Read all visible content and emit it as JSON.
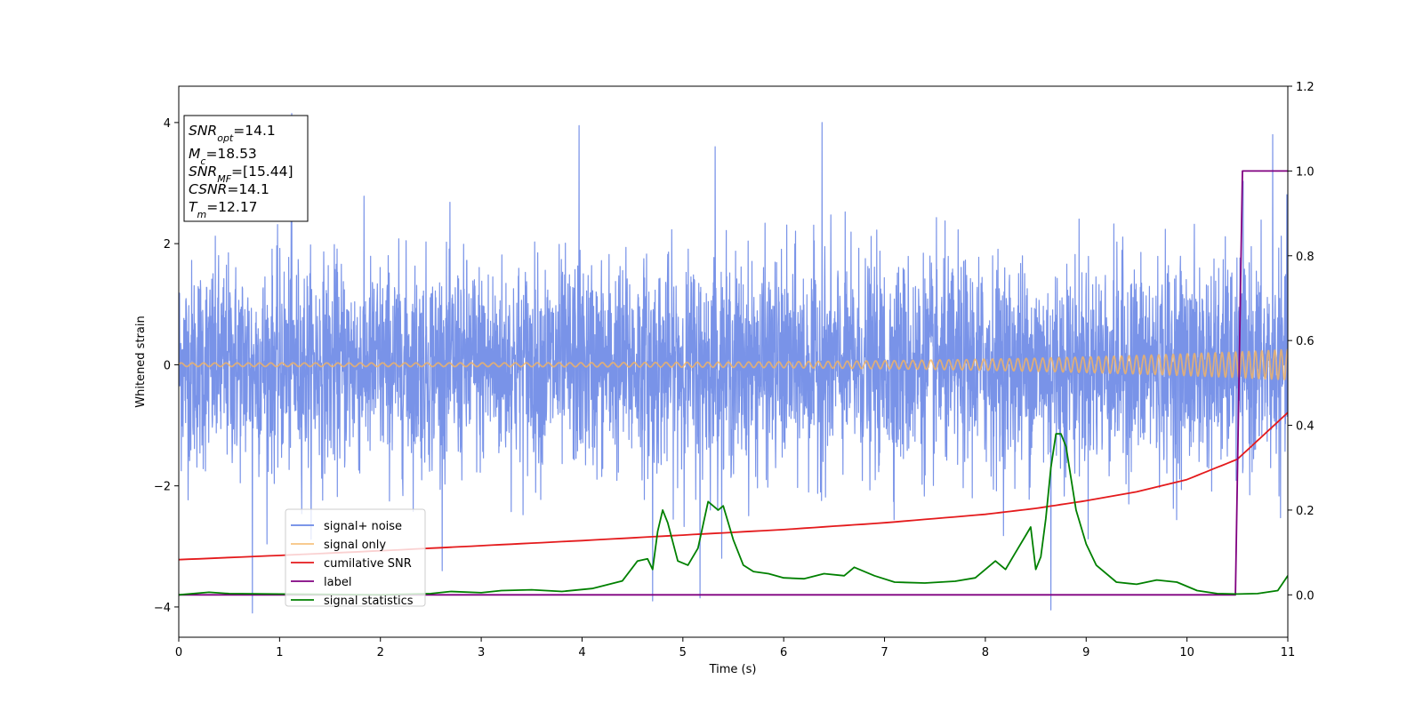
{
  "chart_data": {
    "type": "line",
    "xlabel": "Time (s)",
    "ylabel": "Whitened strain",
    "xlim": [
      0,
      11
    ],
    "ylim_left": [
      -4.5,
      4.6
    ],
    "ylim_right": [
      -0.1,
      1.2
    ],
    "x_ticks": [
      "0",
      "1",
      "2",
      "3",
      "4",
      "5",
      "6",
      "7",
      "8",
      "9",
      "10",
      "11"
    ],
    "y_ticks_left": [
      "−4",
      "−2",
      "0",
      "2",
      "4"
    ],
    "y_ticks_right": [
      "0.0",
      "0.2",
      "0.4",
      "0.6",
      "0.8",
      "1.0",
      "1.2"
    ],
    "grid": false,
    "legend_position": "lower-left",
    "info_box": {
      "snr_opt": {
        "base": "SNR",
        "sub": "opt",
        "value": "=14.1"
      },
      "mc": {
        "base": "M",
        "sub": "c",
        "value": "=18.53"
      },
      "snr_mf": {
        "base": "SNR",
        "sub": "MF",
        "value": "=[15.44]"
      },
      "csnr": {
        "base": "CSNR",
        "sub": "",
        "value": "=14.1"
      },
      "tm": {
        "base": "T",
        "sub": "m",
        "value": "=12.17"
      }
    },
    "series": [
      {
        "name": "signal+ noise",
        "axis": "left",
        "color": "#6a87e6",
        "description_values": {
          "kind": "noise",
          "sigma": 0.85,
          "peaks_x": [
            0.73,
            1.12,
            3.97,
            4.7,
            5.17,
            5.32,
            6.38,
            8.65,
            10.85
          ],
          "peaks_y": [
            -4.1,
            4.15,
            3.95,
            -3.9,
            -3.85,
            3.6,
            4.0,
            -4.05,
            3.8
          ]
        }
      },
      {
        "name": "signal only",
        "axis": "left",
        "color": "#f5b460",
        "description_values": {
          "kind": "chirp",
          "amplitude_start": 0.03,
          "amplitude_end": 0.25,
          "t0": 0,
          "t1": 11
        }
      },
      {
        "name": "cumilative SNR",
        "axis": "right",
        "color": "#e41a1c",
        "x": [
          0,
          1,
          2,
          3,
          4,
          5,
          6,
          7,
          8,
          8.5,
          9,
          9.5,
          10,
          10.5,
          11
        ],
        "y": [
          0.083,
          0.093,
          0.104,
          0.116,
          0.128,
          0.141,
          0.154,
          0.17,
          0.19,
          0.204,
          0.222,
          0.243,
          0.272,
          0.32,
          0.43
        ]
      },
      {
        "name": "label",
        "axis": "right",
        "color": "#800080",
        "x": [
          0,
          10.48,
          10.55,
          11
        ],
        "y": [
          0.0,
          0.0,
          1.0,
          1.0
        ]
      },
      {
        "name": "signal statistics",
        "axis": "right",
        "color": "#008000",
        "x": [
          0,
          0.3,
          0.5,
          1,
          1.5,
          2,
          2.5,
          2.7,
          3,
          3.2,
          3.5,
          3.8,
          4.1,
          4.4,
          4.55,
          4.65,
          4.7,
          4.75,
          4.8,
          4.85,
          4.95,
          5.05,
          5.15,
          5.25,
          5.35,
          5.4,
          5.5,
          5.6,
          5.7,
          5.85,
          6,
          6.2,
          6.4,
          6.6,
          6.7,
          6.9,
          7.1,
          7.4,
          7.7,
          7.9,
          8.1,
          8.2,
          8.3,
          8.4,
          8.45,
          8.5,
          8.55,
          8.6,
          8.65,
          8.7,
          8.75,
          8.8,
          8.9,
          9.0,
          9.1,
          9.3,
          9.5,
          9.7,
          9.9,
          10.1,
          10.3,
          10.5,
          10.7,
          10.9,
          11
        ],
        "y": [
          0.0,
          0.006,
          0.003,
          0.002,
          0.001,
          0.0,
          0.003,
          0.008,
          0.005,
          0.01,
          0.012,
          0.008,
          0.015,
          0.033,
          0.08,
          0.085,
          0.06,
          0.15,
          0.2,
          0.17,
          0.08,
          0.07,
          0.11,
          0.22,
          0.2,
          0.21,
          0.13,
          0.07,
          0.055,
          0.05,
          0.04,
          0.038,
          0.05,
          0.045,
          0.065,
          0.045,
          0.03,
          0.028,
          0.032,
          0.04,
          0.08,
          0.06,
          0.1,
          0.14,
          0.16,
          0.06,
          0.09,
          0.18,
          0.3,
          0.38,
          0.38,
          0.35,
          0.2,
          0.12,
          0.07,
          0.03,
          0.025,
          0.035,
          0.03,
          0.01,
          0.003,
          0.002,
          0.003,
          0.01,
          0.045
        ]
      }
    ]
  }
}
